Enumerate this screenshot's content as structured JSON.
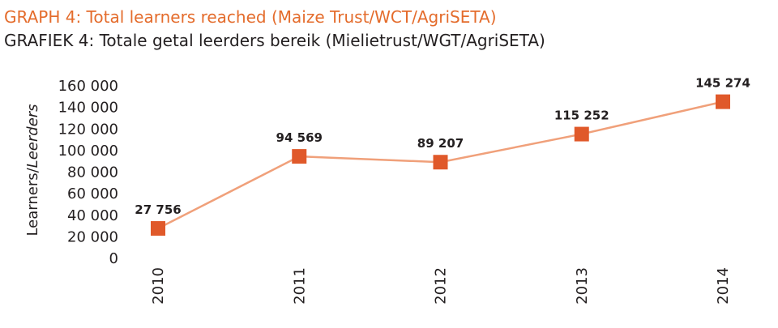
{
  "header": {
    "title_en": "GRAPH 4: Total learners reached (Maize Trust/WCT/AgriSETA)",
    "title_af": "GRAFIEK 4: Totale getal leerders bereik (Mielietrust/WGT/AgriSETA)"
  },
  "chart_data": {
    "type": "line",
    "categories": [
      "2010",
      "2011",
      "2012",
      "2013",
      "2014"
    ],
    "series": [
      {
        "values": [
          27756,
          94569,
          89207,
          115252,
          145274
        ]
      }
    ],
    "data_labels": [
      "27 756",
      "94 569",
      "89 207",
      "115 252",
      "145 274"
    ],
    "ylabel_normal": "Learners/",
    "ylabel_italic": "Leerders",
    "ylim": [
      0,
      160000
    ],
    "yticks": [
      0,
      20000,
      40000,
      60000,
      80000,
      100000,
      120000,
      140000,
      160000
    ],
    "ytick_labels": [
      "0",
      "20 000",
      "40 000",
      "60 000",
      "80 000",
      "100 000",
      "120 000",
      "140 000",
      "160 000"
    ],
    "grid": false,
    "legend": "none",
    "colors": {
      "line": "#f0a07a",
      "marker": "#e0592a",
      "title_en": "#e46c2c",
      "text": "#231f20"
    }
  }
}
